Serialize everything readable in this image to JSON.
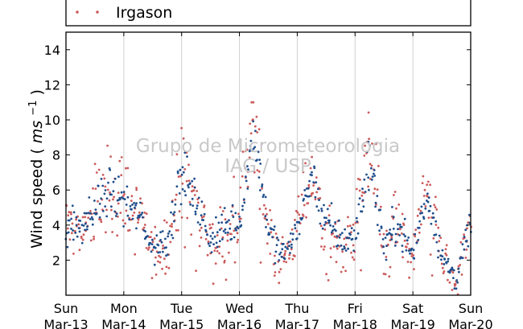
{
  "chart_data": {
    "type": "scatter",
    "title": "",
    "ylabel": "Wind speed",
    "ylabel_unit_base": "ms",
    "ylabel_unit_exp": "−1",
    "ylim": [
      0,
      15
    ],
    "yticks": [
      2,
      4,
      6,
      8,
      10,
      12,
      14
    ],
    "x_range": [
      "2016-03-13",
      "2016-03-20"
    ],
    "x_ticks": [
      {
        "day": "Sun",
        "date": "Mar-13"
      },
      {
        "day": "Mon",
        "date": "Mar-14"
      },
      {
        "day": "Tue",
        "date": "Mar-15"
      },
      {
        "day": "Wed",
        "date": "Mar-16"
      },
      {
        "day": "Thu",
        "date": "Mar-17"
      },
      {
        "day": "Fri",
        "date": "Mar-18"
      },
      {
        "day": "Sat",
        "date": "Mar-19"
      },
      {
        "day": "Sun",
        "date": "Mar-20"
      }
    ],
    "grid": "vertical",
    "legend_position": "top",
    "watermark": [
      "Grupo de Micrometeorologia",
      "IAG / USP"
    ],
    "series": [
      {
        "name": "Irgason",
        "color": "#cc5a5a",
        "marker": "dot",
        "x": [
          "Mar-13 00:00",
          "Mar-13 06:00",
          "Mar-13 12:00",
          "Mar-13 18:00",
          "Mar-14 00:00",
          "Mar-14 06:00",
          "Mar-14 12:00",
          "Mar-14 18:00",
          "Mar-15 00:00",
          "Mar-15 06:00",
          "Mar-15 12:00",
          "Mar-15 18:00",
          "Mar-16 00:00",
          "Mar-16 06:00",
          "Mar-16 12:00",
          "Mar-16 18:00",
          "Mar-17 00:00",
          "Mar-17 06:00",
          "Mar-17 12:00",
          "Mar-17 18:00",
          "Mar-18 00:00",
          "Mar-18 06:00",
          "Mar-18 12:00",
          "Mar-18 18:00",
          "Mar-19 00:00",
          "Mar-19 06:00",
          "Mar-19 12:00",
          "Mar-19 18:00",
          "Mar-20 00:00"
        ],
        "y": [
          4.2,
          3.5,
          5.0,
          6.2,
          5.5,
          4.8,
          2.5,
          3.0,
          7.5,
          5.5,
          3.0,
          3.5,
          4.5,
          10.5,
          3.5,
          2.0,
          4.0,
          7.0,
          4.0,
          3.0,
          3.5,
          8.5,
          2.5,
          4.0,
          2.0,
          6.5,
          2.5,
          0.8,
          4.5
        ]
      },
      {
        "name": "",
        "color": "#1f4e8c",
        "marker": "dot",
        "x": [
          "Mar-13 00:00",
          "Mar-13 06:00",
          "Mar-13 12:00",
          "Mar-13 18:00",
          "Mar-14 00:00",
          "Mar-14 06:00",
          "Mar-14 12:00",
          "Mar-14 18:00",
          "Mar-15 00:00",
          "Mar-15 06:00",
          "Mar-15 12:00",
          "Mar-15 18:00",
          "Mar-16 00:00",
          "Mar-16 06:00",
          "Mar-16 12:00",
          "Mar-16 18:00",
          "Mar-17 00:00",
          "Mar-17 06:00",
          "Mar-17 12:00",
          "Mar-17 18:00",
          "Mar-18 00:00",
          "Mar-18 06:00",
          "Mar-18 12:00",
          "Mar-18 18:00",
          "Mar-19 00:00",
          "Mar-19 06:00",
          "Mar-19 12:00",
          "Mar-19 18:00",
          "Mar-20 00:00"
        ],
        "y": [
          4.0,
          3.8,
          4.8,
          6.0,
          5.3,
          4.5,
          2.8,
          3.2,
          7.2,
          5.2,
          3.2,
          3.8,
          4.2,
          9.5,
          3.8,
          2.2,
          3.8,
          6.8,
          4.2,
          3.2,
          3.2,
          8.0,
          2.8,
          4.2,
          2.2,
          6.0,
          2.2,
          1.0,
          4.0
        ]
      }
    ]
  }
}
